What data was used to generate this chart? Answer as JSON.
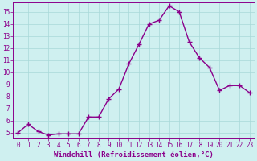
{
  "x": [
    0,
    1,
    2,
    3,
    4,
    5,
    6,
    7,
    8,
    9,
    10,
    11,
    12,
    13,
    14,
    15,
    16,
    17,
    18,
    19,
    20,
    21,
    22,
    23
  ],
  "y": [
    5.0,
    5.7,
    5.1,
    4.8,
    4.9,
    4.9,
    4.9,
    6.3,
    6.3,
    7.8,
    8.6,
    10.7,
    12.3,
    14.0,
    14.3,
    15.5,
    15.0,
    12.5,
    11.2,
    10.4,
    8.5,
    8.9,
    8.9,
    8.3
  ],
  "line_color": "#8B008B",
  "marker": "+",
  "marker_size": 4,
  "background_color": "#cff0f0",
  "grid_color": "#a8d8d8",
  "xlabel": "Windchill (Refroidissement éolien,°C)",
  "ylabel": "",
  "xlim": [
    -0.5,
    23.5
  ],
  "ylim": [
    4.5,
    15.8
  ],
  "yticks": [
    5,
    6,
    7,
    8,
    9,
    10,
    11,
    12,
    13,
    14,
    15
  ],
  "xticks": [
    0,
    1,
    2,
    3,
    4,
    5,
    6,
    7,
    8,
    9,
    10,
    11,
    12,
    13,
    14,
    15,
    16,
    17,
    18,
    19,
    20,
    21,
    22,
    23
  ],
  "tick_fontsize": 5.5,
  "xlabel_fontsize": 6.5,
  "line_width": 1.0
}
